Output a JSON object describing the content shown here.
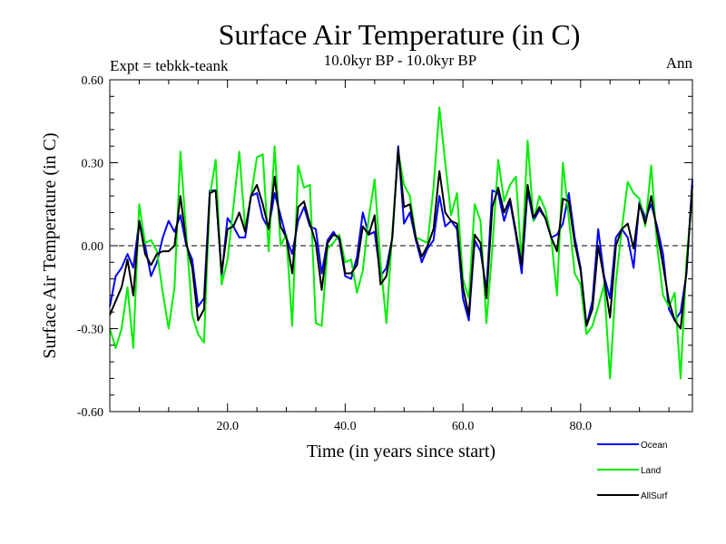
{
  "chart_data": {
    "type": "line",
    "title": "Surface Air Temperature (in C)",
    "subtitle": "10.0kyr BP - 10.0kyr BP",
    "expt_label": "Expt = tebkk-teank",
    "season": "Ann",
    "xlabel": "Time (in years since start)",
    "ylabel": "Surface Air Temperature (in C)",
    "xlim": [
      0,
      99
    ],
    "ylim": [
      -0.6,
      0.6
    ],
    "x_ticks": [
      20,
      40,
      60,
      80
    ],
    "x_tick_labels": [
      "20.0",
      "40.0",
      "60.0",
      "80.0"
    ],
    "y_ticks": [
      -0.6,
      -0.3,
      0.0,
      0.3,
      0.6
    ],
    "y_tick_labels": [
      "-0.60",
      "-0.30",
      "0.00",
      "0.30",
      "0.60"
    ],
    "zero_line": "dashed",
    "legend_position": "bottom-right, below plot",
    "x": [
      0,
      1,
      2,
      3,
      4,
      5,
      6,
      7,
      8,
      9,
      10,
      11,
      12,
      13,
      14,
      15,
      16,
      17,
      18,
      19,
      20,
      21,
      22,
      23,
      24,
      25,
      26,
      27,
      28,
      29,
      30,
      31,
      32,
      33,
      34,
      35,
      36,
      37,
      38,
      39,
      40,
      41,
      42,
      43,
      44,
      45,
      46,
      47,
      48,
      49,
      50,
      51,
      52,
      53,
      54,
      55,
      56,
      57,
      58,
      59,
      60,
      61,
      62,
      63,
      64,
      65,
      66,
      67,
      68,
      69,
      70,
      71,
      72,
      73,
      74,
      75,
      76,
      77,
      78,
      79,
      80,
      81,
      82,
      83,
      84,
      85,
      86,
      87,
      88,
      89,
      90,
      91,
      92,
      93,
      94,
      95,
      96,
      97,
      98,
      99
    ],
    "series": [
      {
        "name": "Ocean",
        "color": "#0000ff",
        "values": [
          -0.22,
          -0.11,
          -0.08,
          -0.03,
          -0.08,
          0.09,
          0.0,
          -0.11,
          -0.06,
          0.03,
          0.09,
          0.05,
          0.11,
          0.0,
          -0.05,
          -0.22,
          -0.19,
          0.2,
          0.2,
          -0.11,
          0.1,
          0.07,
          0.03,
          0.03,
          0.18,
          0.19,
          0.1,
          0.06,
          0.19,
          0.11,
          0.03,
          -0.03,
          0.09,
          0.14,
          0.07,
          0.06,
          -0.1,
          0.02,
          0.05,
          0.02,
          -0.11,
          -0.12,
          -0.04,
          0.12,
          0.04,
          0.05,
          -0.11,
          -0.08,
          0.03,
          0.36,
          0.08,
          0.12,
          0.02,
          -0.06,
          -0.01,
          0.02,
          0.18,
          0.07,
          0.09,
          0.06,
          -0.19,
          -0.27,
          0.02,
          -0.02,
          -0.16,
          0.2,
          0.19,
          0.09,
          0.16,
          0.04,
          -0.1,
          0.2,
          0.09,
          0.13,
          0.1,
          0.03,
          0.04,
          0.08,
          0.19,
          0.03,
          -0.08,
          -0.29,
          -0.2,
          0.06,
          -0.11,
          -0.19,
          0.03,
          0.06,
          0.03,
          -0.08,
          0.16,
          0.1,
          0.15,
          0.07,
          -0.03,
          -0.23,
          -0.27,
          -0.24,
          -0.1,
          0.24
        ]
      },
      {
        "name": "Land",
        "color": "#00ee00",
        "values": [
          -0.3,
          -0.37,
          -0.3,
          -0.15,
          -0.37,
          0.15,
          0.01,
          0.02,
          -0.02,
          -0.17,
          -0.3,
          -0.15,
          0.34,
          0.04,
          -0.25,
          -0.32,
          -0.35,
          0.18,
          0.31,
          -0.14,
          -0.05,
          0.14,
          0.34,
          0.06,
          0.18,
          0.32,
          0.33,
          -0.02,
          0.36,
          0.0,
          0.04,
          -0.29,
          0.29,
          0.21,
          0.22,
          -0.28,
          -0.29,
          -0.01,
          0.01,
          0.04,
          -0.06,
          -0.05,
          -0.17,
          -0.09,
          0.1,
          0.24,
          -0.06,
          -0.28,
          0.05,
          0.34,
          0.22,
          0.18,
          0.03,
          0.02,
          0.01,
          0.21,
          0.5,
          0.3,
          0.11,
          0.19,
          -0.12,
          -0.19,
          0.15,
          0.09,
          -0.28,
          -0.01,
          0.31,
          0.16,
          0.22,
          0.25,
          -0.06,
          0.38,
          0.09,
          0.18,
          0.13,
          0.03,
          -0.18,
          0.3,
          0.1,
          -0.1,
          -0.14,
          -0.32,
          -0.29,
          -0.22,
          -0.14,
          -0.48,
          -0.13,
          0.06,
          0.23,
          0.19,
          0.17,
          0.07,
          0.29,
          0.0,
          -0.18,
          -0.22,
          -0.17,
          -0.48,
          -0.05,
          0.19
        ]
      },
      {
        "name": "AllSurf",
        "color": "#000000",
        "values": [
          -0.25,
          -0.2,
          -0.15,
          -0.05,
          -0.18,
          0.09,
          -0.03,
          -0.07,
          -0.03,
          -0.02,
          -0.02,
          0.0,
          0.18,
          0.01,
          -0.08,
          -0.27,
          -0.23,
          0.19,
          0.2,
          -0.1,
          0.06,
          0.07,
          0.12,
          0.05,
          0.18,
          0.22,
          0.15,
          0.06,
          0.25,
          0.07,
          0.03,
          -0.1,
          0.14,
          0.16,
          0.08,
          0.01,
          -0.16,
          0.01,
          0.04,
          0.03,
          -0.1,
          -0.1,
          -0.07,
          0.07,
          0.04,
          0.11,
          -0.14,
          -0.11,
          0.03,
          0.35,
          0.14,
          0.15,
          0.03,
          -0.04,
          0.0,
          0.06,
          0.27,
          0.12,
          0.09,
          0.08,
          -0.15,
          -0.25,
          0.04,
          0.01,
          -0.19,
          0.14,
          0.21,
          0.12,
          0.17,
          0.05,
          -0.07,
          0.22,
          0.1,
          0.14,
          0.1,
          0.03,
          -0.02,
          0.17,
          0.16,
          0.01,
          -0.09,
          -0.29,
          -0.23,
          0.0,
          -0.12,
          -0.26,
          0.0,
          0.06,
          0.08,
          -0.01,
          0.15,
          0.08,
          0.18,
          0.05,
          -0.07,
          -0.2,
          -0.27,
          -0.3,
          -0.09,
          0.22
        ]
      }
    ]
  }
}
